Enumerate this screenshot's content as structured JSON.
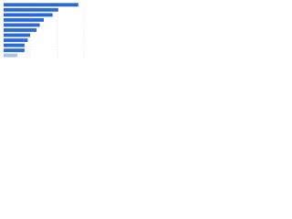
{
  "chart_data": {
    "type": "bar",
    "orientation": "horizontal",
    "categories": [
      null,
      null,
      null,
      null,
      null,
      null,
      null,
      null,
      null,
      null,
      null
    ],
    "values": [
      93,
      68,
      61,
      50,
      45,
      41,
      33,
      30,
      26,
      26,
      17
    ],
    "colors": [
      "#2a6ad6",
      "#2a6ad6",
      "#2a6ad6",
      "#2a6ad6",
      "#2a6ad6",
      "#2a6ad6",
      "#2a6ad6",
      "#2a6ad6",
      "#2a6ad6",
      "#2a6ad6",
      "#a9c3ee"
    ],
    "xlim": [
      0,
      100
    ],
    "xticks": [
      0,
      33,
      67,
      100
    ],
    "grid": true
  }
}
